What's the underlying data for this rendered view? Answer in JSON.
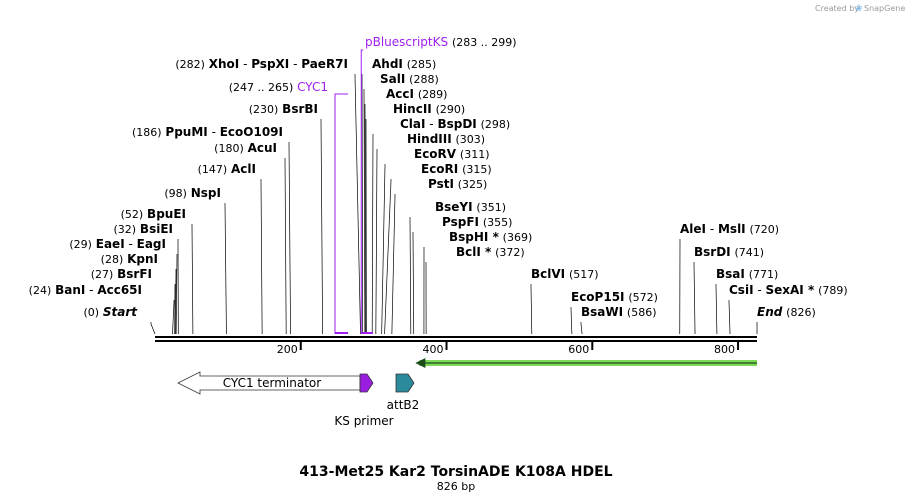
{
  "credit": {
    "text": "Created by",
    "brand": "SnapGene"
  },
  "title": "413-Met25 Kar2 TorsinADE K108A HDEL",
  "length": "826 bp",
  "total_bp": 826,
  "colors": {
    "primer": "#a020f0",
    "feature_purple": "#9b1ee0",
    "feature_teal": "#2b8a9c",
    "orf_green": "#7ed957",
    "backbone": "#000000"
  },
  "ticks": [
    {
      "label": "200",
      "bp": 200
    },
    {
      "label": "400",
      "bp": 400
    },
    {
      "label": "600",
      "bp": 600
    },
    {
      "label": "800",
      "bp": 800
    }
  ],
  "sites": [
    {
      "id": "start",
      "pos": "(0)",
      "names": [
        "Start"
      ],
      "bp": 0,
      "italic": true
    },
    {
      "id": "bani",
      "pos": "(24)",
      "names": [
        "BanI",
        "Acc65I"
      ],
      "bp": 24
    },
    {
      "id": "bsrfi",
      "pos": "(27)",
      "names": [
        "BsrFI"
      ],
      "bp": 27
    },
    {
      "id": "kpni",
      "pos": "(28)",
      "names": [
        "KpnI"
      ],
      "bp": 28
    },
    {
      "id": "eaei",
      "pos": "(29)",
      "names": [
        "EaeI",
        "EagI"
      ],
      "bp": 29
    },
    {
      "id": "bsiei",
      "pos": "(32)",
      "names": [
        "BsiEI"
      ],
      "bp": 32
    },
    {
      "id": "bpuei",
      "pos": "(52)",
      "names": [
        "BpuEI"
      ],
      "bp": 52
    },
    {
      "id": "nspi",
      "pos": "(98)",
      "names": [
        "NspI"
      ],
      "bp": 98
    },
    {
      "id": "acli",
      "pos": "(147)",
      "names": [
        "AclI"
      ],
      "bp": 147
    },
    {
      "id": "acui",
      "pos": "(180)",
      "names": [
        "AcuI"
      ],
      "bp": 180
    },
    {
      "id": "ppumi",
      "pos": "(186)",
      "names": [
        "PpuMI",
        "EcoO109I"
      ],
      "bp": 186
    },
    {
      "id": "bsrbi",
      "pos": "(230)",
      "names": [
        "BsrBI"
      ],
      "bp": 230
    },
    {
      "id": "xhoi",
      "pos": "(282)",
      "names": [
        "XhoI",
        "PspXI",
        "PaeR7I"
      ],
      "bp": 282
    },
    {
      "id": "ahdi",
      "pos": "(285)",
      "names": [
        "AhdI"
      ],
      "bp": 285
    },
    {
      "id": "sali",
      "pos": "(288)",
      "names": [
        "SalI"
      ],
      "bp": 288
    },
    {
      "id": "acci",
      "pos": "(289)",
      "names": [
        "AccI"
      ],
      "bp": 289
    },
    {
      "id": "hincii",
      "pos": "(290)",
      "names": [
        "HincII"
      ],
      "bp": 290
    },
    {
      "id": "clai",
      "pos": "(298)",
      "names": [
        "ClaI",
        "BspDI"
      ],
      "bp": 298
    },
    {
      "id": "hindiii",
      "pos": "(303)",
      "names": [
        "HindIII"
      ],
      "bp": 303
    },
    {
      "id": "ecorv",
      "pos": "(311)",
      "names": [
        "EcoRV"
      ],
      "bp": 311
    },
    {
      "id": "ecori",
      "pos": "(315)",
      "names": [
        "EcoRI"
      ],
      "bp": 315
    },
    {
      "id": "psti",
      "pos": "(325)",
      "names": [
        "PstI"
      ],
      "bp": 325
    },
    {
      "id": "bseyi",
      "pos": "(351)",
      "names": [
        "BseYI"
      ],
      "bp": 351
    },
    {
      "id": "pspfi",
      "pos": "(355)",
      "names": [
        "PspFI"
      ],
      "bp": 355
    },
    {
      "id": "bsphi",
      "pos": "(369)",
      "names": [
        "BspHI *"
      ],
      "bp": 369
    },
    {
      "id": "bcli",
      "pos": "(372)",
      "names": [
        "BclI *"
      ],
      "bp": 372
    },
    {
      "id": "bclvi",
      "pos": "(517)",
      "names": [
        "BclVI"
      ],
      "bp": 517
    },
    {
      "id": "ecop15i",
      "pos": "(572)",
      "names": [
        "EcoP15I"
      ],
      "bp": 572
    },
    {
      "id": "bsawi",
      "pos": "(586)",
      "names": [
        "BsaWI"
      ],
      "bp": 586
    },
    {
      "id": "alei",
      "pos": "(720)",
      "names": [
        "AleI",
        "MslI"
      ],
      "bp": 720
    },
    {
      "id": "bsrdi",
      "pos": "(741)",
      "names": [
        "BsrDI"
      ],
      "bp": 741
    },
    {
      "id": "bsai",
      "pos": "(771)",
      "names": [
        "BsaI"
      ],
      "bp": 771
    },
    {
      "id": "csii",
      "pos": "(789)",
      "names": [
        "CsiI",
        "SexAI *"
      ],
      "bp": 789
    },
    {
      "id": "end",
      "pos": "(826)",
      "names": [
        "End"
      ],
      "bp": 826,
      "italic": true
    }
  ],
  "primers": [
    {
      "id": "cyc1",
      "name": "CYC1",
      "range": "(247 .. 265)",
      "start": 247,
      "end": 265
    },
    {
      "id": "pbluescriptks",
      "name": "pBluescriptKS",
      "range": "(283 .. 299)",
      "start": 283,
      "end": 299
    }
  ],
  "features": [
    {
      "id": "cyc1-terminator",
      "name": "CYC1 terminator",
      "start": 33,
      "end": 282,
      "direction": "reverse",
      "color": "#ffffff"
    },
    {
      "id": "ks-primer",
      "name": "KS primer",
      "start": 282,
      "end": 299,
      "direction": "forward",
      "color": "#9b1ee0"
    },
    {
      "id": "attb2",
      "name": "attB2",
      "start": 315,
      "end": 339,
      "direction": "forward",
      "color": "#2b8a9c"
    }
  ],
  "orf": {
    "start": 360,
    "end": 826,
    "direction": "reverse",
    "color": "#7ed957"
  }
}
